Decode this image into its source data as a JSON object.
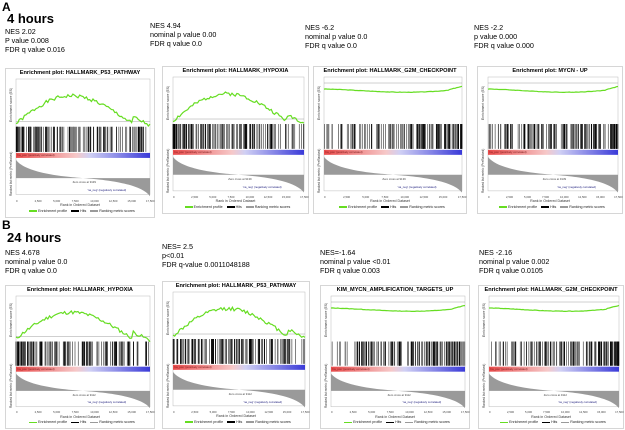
{
  "sections": [
    {
      "letter": "A",
      "title": "4 hours",
      "plots": [
        {
          "stats": [
            "NES 2.02",
            "P value 0.008",
            "FDR q value 0.016"
          ],
          "plot_title": "Enrichment plot: HALLMARK_P53_PATHWAY",
          "shape": "pos_early",
          "zero_cross": "Zero cross at 9139"
        },
        {
          "stats": [
            "NES 4.94",
            "nominal p value 0.00",
            "FDR q value 0.0"
          ],
          "plot_title": "Enrichment plot: HALLMARK_HYPOXIA",
          "shape": "pos_early",
          "zero_cross": "Zero cross at 9139"
        },
        {
          "stats": [
            "NES -6.2",
            "nominal p value 0.0",
            "FDR q value 0.0"
          ],
          "plot_title": "Enrichment plot: HALLMARK_G2M_CHECKPOINT",
          "shape": "neg_late",
          "zero_cross": "Zero cross at 9139"
        },
        {
          "stats": [
            "NES -2.2",
            "p value 0.000",
            "FDR q value 0.000"
          ],
          "plot_title": "Enrichment plot: MYCN - UP",
          "shape": "neg_late",
          "zero_cross": "Zero cross at 9139"
        }
      ]
    },
    {
      "letter": "B",
      "title": "24 hours",
      "plots": [
        {
          "stats": [
            "NES 4.678",
            "nominal p value 0.0",
            "FDR q value 0.0"
          ],
          "plot_title": "Enrichment plot: HALLMARK_HYPOXIA",
          "shape": "pos_early",
          "zero_cross": "Zero cross at 9112"
        },
        {
          "stats": [
            "NES= 2.5",
            "p<0.01",
            "FDR q-value 0.0011048188"
          ],
          "plot_title": "Enrichment plot: HALLMARK_P53_PATHWAY",
          "shape": "pos_early",
          "zero_cross": "Zero cross at 9112"
        },
        {
          "stats": [
            "NES=-1.64",
            "nominal p value <0.01",
            "FDR q value 0.003"
          ],
          "plot_title": "KIM_MYCN_AMPLIFICATION_TARGETS_UP",
          "shape": "neg_late",
          "zero_cross": "Zero cross at 9112"
        },
        {
          "stats": [
            "NES -2.16",
            "nominal p value 0.002",
            "FDR q value 0.0105"
          ],
          "plot_title": "Enrichment plot: HALLMARK_G2M_CHECKPOINT",
          "shape": "neg_late",
          "zero_cross": "Zero cross at 9112"
        }
      ]
    }
  ],
  "common": {
    "es_axis_label": "Enrichment score (ES)",
    "rank_axis_label": "Ranked list metric (PreRanked)",
    "x_axis_label": "Rank in Ordered Dataset",
    "pos_label": "'na_pos' (positively correlated)",
    "neg_label": "'na_neg' (negatively correlated)",
    "legend": [
      "Enrichment profile",
      "Hits",
      "Ranking metric scores"
    ],
    "x_ticks": [
      "0",
      "2,500",
      "5,000",
      "7,500",
      "10,000",
      "12,500",
      "15,000",
      "17,500"
    ],
    "colors": {
      "profile": "#66dd22",
      "hits": "#000000",
      "pos": "#e84a4a",
      "neg": "#3a3ad8",
      "metric": "#9a9a9a"
    }
  }
}
